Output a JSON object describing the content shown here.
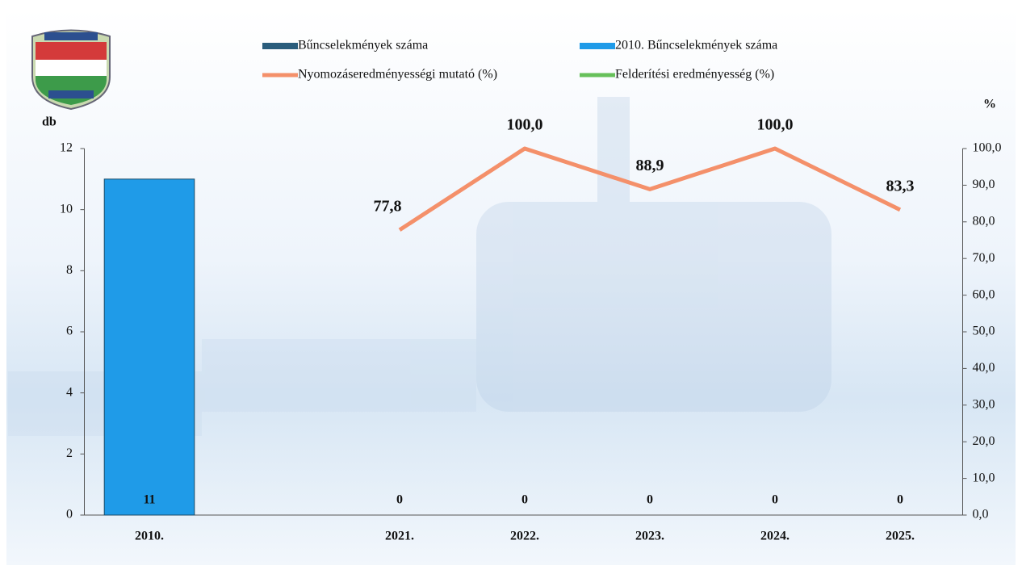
{
  "chart_data": {
    "type": "bar",
    "y_label": "db",
    "y2_label": "%",
    "categories": [
      "2010.",
      null,
      "2021.",
      "2022.",
      "2023.",
      "2024.",
      "2025."
    ],
    "series": [
      {
        "name": "Bűncselekmények száma",
        "color": "#2a5d7c",
        "type": "bar",
        "values": [
          null,
          null,
          0,
          0,
          0,
          0,
          0
        ]
      },
      {
        "name": "2010. Bűncselekmények száma",
        "color": "#1f9be8",
        "type": "bar",
        "values": [
          11,
          null,
          null,
          null,
          null,
          null,
          null
        ]
      },
      {
        "name": "Nyomozáseredményességi mutató (%)",
        "color": "#f4906a",
        "type": "line",
        "axis": "y2",
        "values": [
          null,
          null,
          77.8,
          100.0,
          88.9,
          100.0,
          83.3
        ],
        "value_labels": [
          null,
          null,
          "77,8",
          "100,0",
          "88,9",
          "100,0",
          "83,3"
        ]
      },
      {
        "name": "Felderítési eredményesség (%)",
        "color": "#66c05a",
        "type": "line",
        "axis": "y2",
        "values": [
          null,
          null,
          null,
          null,
          null,
          null,
          null
        ]
      }
    ],
    "ylim": [
      0,
      12
    ],
    "yticks": [
      0,
      2,
      4,
      6,
      8,
      10,
      12
    ],
    "y2lim": [
      0,
      100
    ],
    "y2ticks": [
      {
        "value": 0,
        "label": "0,0"
      },
      {
        "value": 10,
        "label": "10,0"
      },
      {
        "value": 20,
        "label": "20,0"
      },
      {
        "value": 30,
        "label": "30,0"
      },
      {
        "value": 40,
        "label": "40,0"
      },
      {
        "value": 50,
        "label": "50,0"
      },
      {
        "value": 60,
        "label": "60,0"
      },
      {
        "value": 70,
        "label": "70,0"
      },
      {
        "value": 80,
        "label": "80,0"
      },
      {
        "value": 90,
        "label": "90,0"
      },
      {
        "value": 100,
        "label": "100,0"
      }
    ],
    "grid": false
  }
}
